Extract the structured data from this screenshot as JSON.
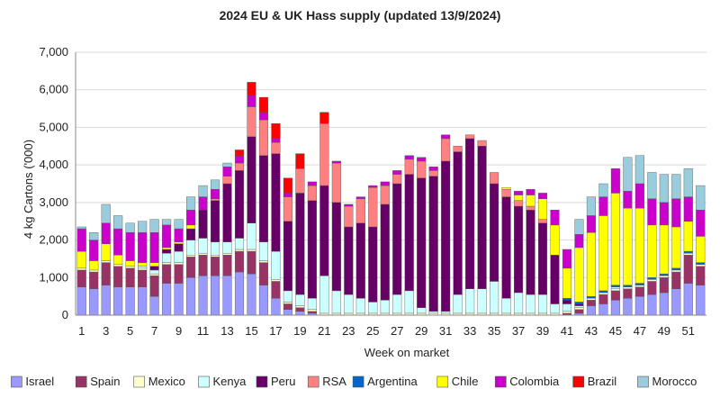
{
  "chart_data": {
    "type": "bar",
    "stacked": true,
    "title": "2024 EU & UK Hass supply (updated 13/9/2024)",
    "xlabel": "Week on market",
    "ylabel": "4 kg Cartons ('000)",
    "ylim": [
      0,
      7000
    ],
    "yticks": [
      0,
      1000,
      2000,
      3000,
      4000,
      5000,
      6000,
      7000
    ],
    "ytick_labels": [
      "0",
      "1,000",
      "2,000",
      "3,000",
      "4,000",
      "5,000",
      "6,000",
      "7,000"
    ],
    "xtick_labels": [
      "1",
      "3",
      "5",
      "7",
      "9",
      "11",
      "13",
      "15",
      "17",
      "19",
      "21",
      "23",
      "25",
      "27",
      "29",
      "31",
      "33",
      "35",
      "37",
      "39",
      "41",
      "43",
      "45",
      "47",
      "49",
      "51"
    ],
    "grid": "horizontal",
    "legend_position": "bottom",
    "categories": [
      "1",
      "2",
      "3",
      "4",
      "5",
      "6",
      "7",
      "8",
      "9",
      "10",
      "11",
      "12",
      "13",
      "14",
      "15",
      "16",
      "17",
      "18",
      "19",
      "20",
      "21",
      "22",
      "23",
      "24",
      "25",
      "26",
      "27",
      "28",
      "29",
      "30",
      "31",
      "32",
      "33",
      "34",
      "35",
      "36",
      "37",
      "38",
      "39",
      "40",
      "41",
      "42",
      "43",
      "44",
      "45",
      "46",
      "47",
      "48",
      "49",
      "50",
      "51",
      "52"
    ],
    "series": [
      {
        "name": "Israel",
        "color": "#9999ff",
        "values": [
          750,
          700,
          800,
          750,
          750,
          750,
          500,
          850,
          850,
          1000,
          1050,
          1050,
          1050,
          1150,
          1100,
          800,
          450,
          150,
          100,
          50,
          0,
          0,
          0,
          0,
          0,
          0,
          0,
          0,
          0,
          0,
          0,
          0,
          0,
          0,
          0,
          0,
          0,
          0,
          0,
          0,
          0,
          50,
          250,
          300,
          400,
          450,
          500,
          550,
          600,
          700,
          850,
          800
        ]
      },
      {
        "name": "Spain",
        "color": "#993366",
        "values": [
          450,
          450,
          600,
          550,
          500,
          450,
          550,
          500,
          500,
          550,
          550,
          500,
          550,
          550,
          600,
          600,
          450,
          150,
          100,
          50,
          0,
          0,
          0,
          0,
          0,
          0,
          0,
          0,
          0,
          0,
          0,
          0,
          0,
          0,
          0,
          0,
          0,
          0,
          0,
          0,
          50,
          100,
          150,
          250,
          250,
          250,
          250,
          350,
          400,
          450,
          750,
          500
        ]
      },
      {
        "name": "Mexico",
        "color": "#ffffcc",
        "values": [
          50,
          50,
          50,
          50,
          50,
          50,
          50,
          50,
          50,
          50,
          50,
          50,
          50,
          50,
          50,
          50,
          50,
          50,
          50,
          50,
          50,
          50,
          50,
          50,
          50,
          50,
          50,
          50,
          50,
          50,
          50,
          50,
          50,
          50,
          50,
          50,
          50,
          50,
          50,
          50,
          50,
          50,
          50,
          50,
          50,
          50,
          50,
          50,
          50,
          50,
          50,
          50
        ]
      },
      {
        "name": "Kenya",
        "color": "#ccffff",
        "values": [
          0,
          0,
          0,
          0,
          0,
          50,
          100,
          250,
          300,
          400,
          400,
          350,
          300,
          300,
          700,
          500,
          750,
          300,
          300,
          300,
          1000,
          600,
          500,
          400,
          300,
          350,
          500,
          600,
          150,
          50,
          50,
          500,
          650,
          650,
          850,
          400,
          550,
          500,
          500,
          250,
          200,
          50,
          0,
          0,
          50,
          0,
          0,
          0,
          0,
          0,
          0,
          0
        ]
      },
      {
        "name": "Peru",
        "color": "#660066",
        "values": [
          0,
          0,
          0,
          0,
          0,
          0,
          100,
          100,
          200,
          300,
          750,
          1100,
          1550,
          1800,
          2300,
          2300,
          2600,
          1850,
          2700,
          2600,
          2400,
          2350,
          1800,
          2000,
          2000,
          2550,
          2950,
          3100,
          3450,
          3600,
          4000,
          3800,
          4000,
          3800,
          2600,
          2700,
          2300,
          2250,
          1900,
          1300,
          100,
          50,
          0,
          0,
          0,
          0,
          0,
          0,
          0,
          0,
          0,
          0
        ]
      },
      {
        "name": "RSA",
        "color": "#ff8080",
        "values": [
          0,
          0,
          0,
          0,
          0,
          0,
          0,
          0,
          0,
          0,
          0,
          50,
          200,
          200,
          800,
          950,
          300,
          650,
          650,
          400,
          1650,
          1050,
          550,
          650,
          1050,
          500,
          250,
          400,
          450,
          150,
          600,
          150,
          100,
          150,
          300,
          200,
          150,
          100,
          100,
          0,
          0,
          0,
          0,
          0,
          0,
          0,
          0,
          0,
          0,
          0,
          0,
          0
        ]
      },
      {
        "name": "Argentina",
        "color": "#0066cc",
        "values": [
          0,
          0,
          0,
          0,
          0,
          0,
          0,
          0,
          0,
          0,
          0,
          0,
          0,
          0,
          0,
          0,
          0,
          0,
          0,
          0,
          0,
          0,
          0,
          0,
          0,
          0,
          0,
          0,
          0,
          0,
          0,
          0,
          0,
          0,
          0,
          0,
          0,
          0,
          0,
          0,
          50,
          50,
          50,
          50,
          50,
          50,
          50,
          50,
          50,
          50,
          50,
          50
        ]
      },
      {
        "name": "Chile",
        "color": "#ffff00",
        "values": [
          450,
          250,
          450,
          250,
          150,
          100,
          100,
          50,
          50,
          100,
          0,
          0,
          0,
          0,
          0,
          0,
          0,
          0,
          0,
          0,
          0,
          0,
          0,
          0,
          0,
          0,
          0,
          0,
          0,
          0,
          0,
          0,
          0,
          0,
          0,
          50,
          150,
          300,
          550,
          800,
          800,
          1450,
          1700,
          2000,
          2450,
          2050,
          2000,
          1400,
          1300,
          1100,
          800,
          700
        ]
      },
      {
        "name": "Colombia",
        "color": "#cc00cc",
        "values": [
          600,
          550,
          550,
          700,
          750,
          800,
          800,
          600,
          350,
          400,
          350,
          250,
          250,
          200,
          300,
          200,
          100,
          100,
          0,
          100,
          0,
          50,
          50,
          50,
          50,
          100,
          100,
          100,
          100,
          100,
          100,
          0,
          0,
          0,
          0,
          0,
          100,
          150,
          150,
          400,
          500,
          350,
          450,
          500,
          650,
          450,
          650,
          700,
          600,
          750,
          650,
          700
        ]
      },
      {
        "name": "Brazil",
        "color": "#ff0000",
        "values": [
          0,
          0,
          0,
          0,
          0,
          0,
          0,
          0,
          0,
          0,
          0,
          0,
          0,
          150,
          350,
          400,
          400,
          400,
          400,
          0,
          300,
          0,
          0,
          0,
          0,
          0,
          0,
          0,
          0,
          0,
          0,
          0,
          0,
          0,
          0,
          0,
          0,
          0,
          0,
          0,
          0,
          0,
          0,
          0,
          0,
          0,
          0,
          0,
          0,
          0,
          0,
          0
        ]
      },
      {
        "name": "Morocco",
        "color": "#99ccdd",
        "values": [
          50,
          200,
          500,
          350,
          250,
          300,
          350,
          150,
          250,
          350,
          300,
          250,
          100,
          0,
          0,
          0,
          0,
          0,
          0,
          0,
          0,
          0,
          0,
          0,
          0,
          0,
          0,
          0,
          0,
          0,
          0,
          0,
          0,
          0,
          0,
          0,
          0,
          0,
          0,
          0,
          0,
          400,
          500,
          350,
          0,
          900,
          750,
          700,
          750,
          650,
          750,
          650
        ]
      }
    ]
  }
}
